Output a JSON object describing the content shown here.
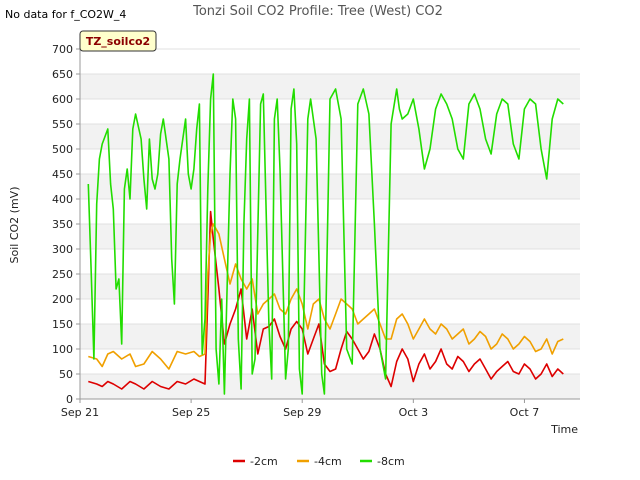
{
  "chart_data": {
    "type": "line",
    "title": "Tonzi Soil CO2 Profile: Tree (West) CO2",
    "subtitle": "No data for f_CO2W_4",
    "badge": "TZ_soilco2",
    "xlabel": "Time",
    "ylabel": "Soil CO2 (mV)",
    "x_start": "Sep 21",
    "x_end": "Oct 9",
    "x_ticks": [
      {
        "label": "Sep 21",
        "day": 0
      },
      {
        "label": "Sep 25",
        "day": 4
      },
      {
        "label": "Sep 29",
        "day": 8
      },
      {
        "label": "Oct 3",
        "day": 12
      },
      {
        "label": "Oct 7",
        "day": 16
      }
    ],
    "xlim": [
      0,
      18
    ],
    "ylim": [
      0,
      700
    ],
    "y_ticks": [
      0,
      50,
      100,
      150,
      200,
      250,
      300,
      350,
      400,
      450,
      500,
      550,
      600,
      650,
      700
    ],
    "grid": true,
    "legend_position": "bottom",
    "series": [
      {
        "name": "-2cm",
        "color": "#dd0000",
        "points": [
          [
            0.3,
            35
          ],
          [
            0.6,
            30
          ],
          [
            0.8,
            25
          ],
          [
            1.0,
            35
          ],
          [
            1.2,
            30
          ],
          [
            1.5,
            20
          ],
          [
            1.8,
            35
          ],
          [
            2.0,
            30
          ],
          [
            2.3,
            20
          ],
          [
            2.6,
            35
          ],
          [
            2.9,
            25
          ],
          [
            3.2,
            20
          ],
          [
            3.5,
            35
          ],
          [
            3.8,
            30
          ],
          [
            4.1,
            40
          ],
          [
            4.3,
            35
          ],
          [
            4.5,
            30
          ],
          [
            4.6,
            200
          ],
          [
            4.7,
            375
          ],
          [
            4.8,
            320
          ],
          [
            5.0,
            220
          ],
          [
            5.2,
            110
          ],
          [
            5.4,
            150
          ],
          [
            5.6,
            180
          ],
          [
            5.8,
            220
          ],
          [
            6.0,
            120
          ],
          [
            6.2,
            180
          ],
          [
            6.4,
            90
          ],
          [
            6.6,
            140
          ],
          [
            6.8,
            145
          ],
          [
            7.0,
            160
          ],
          [
            7.2,
            125
          ],
          [
            7.4,
            100
          ],
          [
            7.6,
            140
          ],
          [
            7.8,
            155
          ],
          [
            8.0,
            140
          ],
          [
            8.2,
            90
          ],
          [
            8.4,
            120
          ],
          [
            8.6,
            150
          ],
          [
            8.8,
            70
          ],
          [
            9.0,
            55
          ],
          [
            9.2,
            60
          ],
          [
            9.4,
            100
          ],
          [
            9.6,
            135
          ],
          [
            9.8,
            120
          ],
          [
            10.0,
            100
          ],
          [
            10.2,
            80
          ],
          [
            10.4,
            95
          ],
          [
            10.6,
            130
          ],
          [
            10.8,
            100
          ],
          [
            11.0,
            50
          ],
          [
            11.2,
            25
          ],
          [
            11.4,
            75
          ],
          [
            11.6,
            100
          ],
          [
            11.8,
            80
          ],
          [
            12.0,
            35
          ],
          [
            12.2,
            70
          ],
          [
            12.4,
            90
          ],
          [
            12.6,
            60
          ],
          [
            12.8,
            75
          ],
          [
            13.0,
            100
          ],
          [
            13.2,
            70
          ],
          [
            13.4,
            60
          ],
          [
            13.6,
            85
          ],
          [
            13.8,
            75
          ],
          [
            14.0,
            55
          ],
          [
            14.2,
            70
          ],
          [
            14.4,
            80
          ],
          [
            14.6,
            60
          ],
          [
            14.8,
            40
          ],
          [
            15.0,
            55
          ],
          [
            15.2,
            65
          ],
          [
            15.4,
            75
          ],
          [
            15.6,
            55
          ],
          [
            15.8,
            50
          ],
          [
            16.0,
            70
          ],
          [
            16.2,
            60
          ],
          [
            16.4,
            40
          ],
          [
            16.6,
            50
          ],
          [
            16.8,
            70
          ],
          [
            17.0,
            45
          ],
          [
            17.2,
            60
          ],
          [
            17.4,
            50
          ]
        ]
      },
      {
        "name": "-4cm",
        "color": "#f0a000",
        "points": [
          [
            0.3,
            85
          ],
          [
            0.6,
            80
          ],
          [
            0.8,
            65
          ],
          [
            1.0,
            90
          ],
          [
            1.2,
            95
          ],
          [
            1.5,
            80
          ],
          [
            1.8,
            90
          ],
          [
            2.0,
            65
          ],
          [
            2.3,
            70
          ],
          [
            2.6,
            95
          ],
          [
            2.9,
            80
          ],
          [
            3.2,
            60
          ],
          [
            3.5,
            95
          ],
          [
            3.8,
            90
          ],
          [
            4.1,
            95
          ],
          [
            4.3,
            85
          ],
          [
            4.5,
            90
          ],
          [
            4.6,
            250
          ],
          [
            4.7,
            330
          ],
          [
            4.8,
            350
          ],
          [
            5.0,
            330
          ],
          [
            5.2,
            280
          ],
          [
            5.4,
            230
          ],
          [
            5.6,
            270
          ],
          [
            5.8,
            240
          ],
          [
            6.0,
            220
          ],
          [
            6.2,
            240
          ],
          [
            6.4,
            170
          ],
          [
            6.6,
            190
          ],
          [
            6.8,
            200
          ],
          [
            7.0,
            210
          ],
          [
            7.2,
            180
          ],
          [
            7.4,
            170
          ],
          [
            7.6,
            200
          ],
          [
            7.8,
            220
          ],
          [
            8.0,
            190
          ],
          [
            8.2,
            140
          ],
          [
            8.4,
            190
          ],
          [
            8.6,
            200
          ],
          [
            8.8,
            160
          ],
          [
            9.0,
            140
          ],
          [
            9.2,
            170
          ],
          [
            9.4,
            200
          ],
          [
            9.6,
            190
          ],
          [
            9.8,
            180
          ],
          [
            10.0,
            150
          ],
          [
            10.2,
            160
          ],
          [
            10.4,
            170
          ],
          [
            10.6,
            180
          ],
          [
            10.8,
            150
          ],
          [
            11.0,
            120
          ],
          [
            11.2,
            120
          ],
          [
            11.4,
            160
          ],
          [
            11.6,
            170
          ],
          [
            11.8,
            150
          ],
          [
            12.0,
            120
          ],
          [
            12.2,
            140
          ],
          [
            12.4,
            160
          ],
          [
            12.6,
            140
          ],
          [
            12.8,
            130
          ],
          [
            13.0,
            150
          ],
          [
            13.2,
            140
          ],
          [
            13.4,
            120
          ],
          [
            13.6,
            130
          ],
          [
            13.8,
            140
          ],
          [
            14.0,
            110
          ],
          [
            14.2,
            120
          ],
          [
            14.4,
            135
          ],
          [
            14.6,
            125
          ],
          [
            14.8,
            100
          ],
          [
            15.0,
            110
          ],
          [
            15.2,
            130
          ],
          [
            15.4,
            120
          ],
          [
            15.6,
            100
          ],
          [
            15.8,
            110
          ],
          [
            16.0,
            125
          ],
          [
            16.2,
            115
          ],
          [
            16.4,
            95
          ],
          [
            16.6,
            100
          ],
          [
            16.8,
            120
          ],
          [
            17.0,
            90
          ],
          [
            17.2,
            115
          ],
          [
            17.4,
            120
          ]
        ]
      },
      {
        "name": "-8cm",
        "color": "#22dd00",
        "points": [
          [
            0.3,
            430
          ],
          [
            0.4,
            260
          ],
          [
            0.5,
            80
          ],
          [
            0.6,
            390
          ],
          [
            0.7,
            480
          ],
          [
            0.8,
            510
          ],
          [
            1.0,
            540
          ],
          [
            1.1,
            430
          ],
          [
            1.2,
            380
          ],
          [
            1.3,
            220
          ],
          [
            1.4,
            240
          ],
          [
            1.5,
            110
          ],
          [
            1.6,
            420
          ],
          [
            1.7,
            460
          ],
          [
            1.8,
            400
          ],
          [
            1.9,
            540
          ],
          [
            2.0,
            570
          ],
          [
            2.2,
            520
          ],
          [
            2.3,
            440
          ],
          [
            2.4,
            380
          ],
          [
            2.5,
            520
          ],
          [
            2.6,
            440
          ],
          [
            2.7,
            420
          ],
          [
            2.8,
            450
          ],
          [
            2.9,
            530
          ],
          [
            3.0,
            560
          ],
          [
            3.2,
            480
          ],
          [
            3.3,
            280
          ],
          [
            3.4,
            190
          ],
          [
            3.5,
            430
          ],
          [
            3.6,
            480
          ],
          [
            3.8,
            560
          ],
          [
            3.9,
            450
          ],
          [
            4.0,
            420
          ],
          [
            4.1,
            460
          ],
          [
            4.2,
            540
          ],
          [
            4.3,
            590
          ],
          [
            4.4,
            90
          ],
          [
            4.5,
            160
          ],
          [
            4.6,
            420
          ],
          [
            4.7,
            600
          ],
          [
            4.8,
            650
          ],
          [
            4.9,
            100
          ],
          [
            5.0,
            30
          ],
          [
            5.1,
            200
          ],
          [
            5.2,
            10
          ],
          [
            5.4,
            450
          ],
          [
            5.5,
            600
          ],
          [
            5.6,
            560
          ],
          [
            5.7,
            120
          ],
          [
            5.8,
            20
          ],
          [
            5.9,
            350
          ],
          [
            6.0,
            520
          ],
          [
            6.1,
            600
          ],
          [
            6.2,
            50
          ],
          [
            6.3,
            80
          ],
          [
            6.5,
            590
          ],
          [
            6.6,
            610
          ],
          [
            6.8,
            150
          ],
          [
            6.9,
            40
          ],
          [
            7.0,
            560
          ],
          [
            7.1,
            600
          ],
          [
            7.2,
            460
          ],
          [
            7.4,
            40
          ],
          [
            7.5,
            100
          ],
          [
            7.6,
            580
          ],
          [
            7.7,
            620
          ],
          [
            7.8,
            510
          ],
          [
            7.9,
            60
          ],
          [
            8.0,
            10
          ],
          [
            8.2,
            560
          ],
          [
            8.3,
            600
          ],
          [
            8.5,
            520
          ],
          [
            8.7,
            50
          ],
          [
            8.8,
            10
          ],
          [
            9.0,
            600
          ],
          [
            9.2,
            620
          ],
          [
            9.4,
            560
          ],
          [
            9.6,
            100
          ],
          [
            9.8,
            70
          ],
          [
            10.0,
            590
          ],
          [
            10.2,
            620
          ],
          [
            10.4,
            570
          ],
          [
            10.6,
            350
          ],
          [
            10.8,
            100
          ],
          [
            11.0,
            40
          ],
          [
            11.2,
            550
          ],
          [
            11.4,
            620
          ],
          [
            11.5,
            580
          ],
          [
            11.6,
            560
          ],
          [
            11.8,
            570
          ],
          [
            12.0,
            600
          ],
          [
            12.2,
            540
          ],
          [
            12.4,
            460
          ],
          [
            12.6,
            500
          ],
          [
            12.8,
            580
          ],
          [
            13.0,
            610
          ],
          [
            13.2,
            590
          ],
          [
            13.4,
            560
          ],
          [
            13.6,
            500
          ],
          [
            13.8,
            480
          ],
          [
            14.0,
            590
          ],
          [
            14.2,
            610
          ],
          [
            14.4,
            580
          ],
          [
            14.6,
            520
          ],
          [
            14.8,
            490
          ],
          [
            15.0,
            570
          ],
          [
            15.2,
            600
          ],
          [
            15.4,
            590
          ],
          [
            15.6,
            510
          ],
          [
            15.8,
            480
          ],
          [
            16.0,
            580
          ],
          [
            16.2,
            600
          ],
          [
            16.4,
            590
          ],
          [
            16.6,
            500
          ],
          [
            16.8,
            440
          ],
          [
            17.0,
            560
          ],
          [
            17.2,
            600
          ],
          [
            17.4,
            590
          ]
        ]
      }
    ]
  }
}
